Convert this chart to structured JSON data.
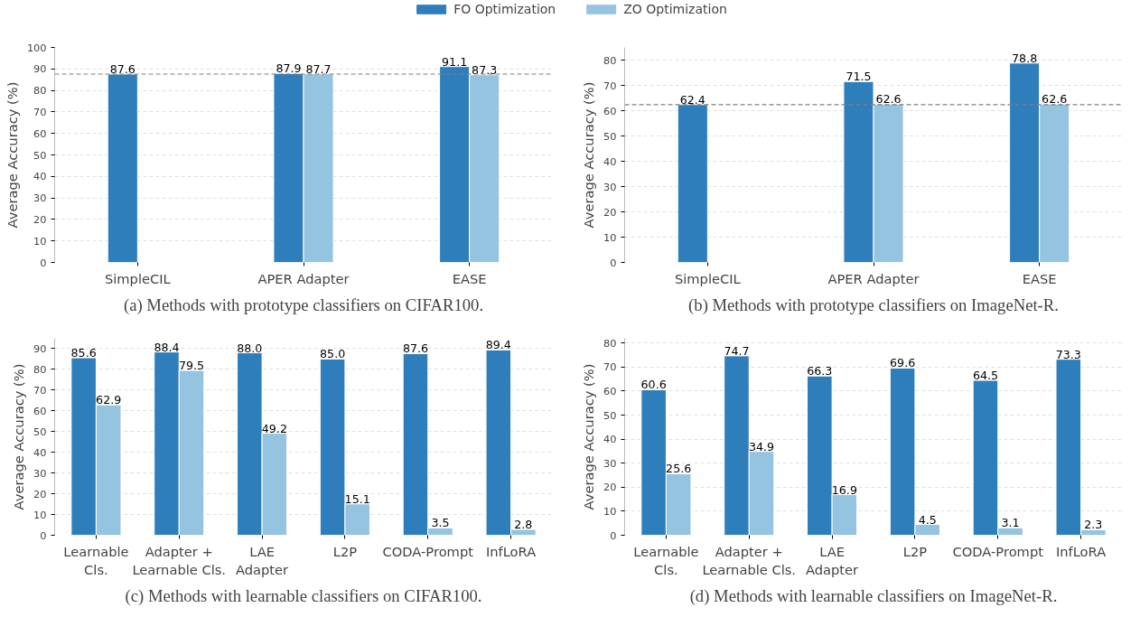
{
  "chart_data": [
    {
      "type": "bar",
      "title": "(a) Methods with prototype classifiers on CIFAR100.",
      "ylabel": "Average Accuracy (%)",
      "categories": [
        "SimpleCIL",
        "APER Adapter",
        "EASE"
      ],
      "series": [
        {
          "name": "FO Optimization",
          "color": "#2e7ebc",
          "values": [
            87.6,
            87.9,
            91.1
          ]
        },
        {
          "name": "ZO Optimization",
          "color": "#95c4e0",
          "values": [
            null,
            87.7,
            87.3
          ]
        }
      ],
      "ylim": [
        0,
        100
      ],
      "yticks": [
        0,
        10,
        20,
        30,
        40,
        50,
        60,
        70,
        80,
        90,
        100
      ],
      "grid": "y",
      "legend": "top",
      "data_labels": true,
      "ref_lines": [
        {
          "axis": "y",
          "value": 87.6,
          "color": "#808080",
          "line_style": "dashed"
        }
      ]
    },
    {
      "type": "bar",
      "title": "(b) Methods with prototype classifiers on ImageNet-R.",
      "ylabel": "Average Accuracy (%)",
      "categories": [
        "SimpleCIL",
        "APER Adapter",
        "EASE"
      ],
      "series": [
        {
          "color": "#2e7ebc",
          "values": [
            62.4,
            71.5,
            78.8
          ]
        },
        {
          "color": "#95c4e0",
          "values": [
            null,
            62.6,
            62.6
          ]
        }
      ],
      "ylim": [
        0,
        85
      ],
      "yticks": [
        0,
        10,
        20,
        30,
        40,
        50,
        60,
        70,
        80
      ],
      "grid": "y",
      "data_labels": true,
      "ref_lines": [
        {
          "axis": "y",
          "value": 62.4,
          "color": "#808080",
          "line_style": "dashed"
        }
      ]
    },
    {
      "type": "bar",
      "title": "(c) Methods with learnable classifiers on CIFAR100.",
      "ylabel": "Average Accuracy (%)",
      "categories": [
        "Learnable\nCls.",
        "Adapter +\nLearnable Cls.",
        "LAE\nAdapter",
        "L2P",
        "CODA-Prompt",
        "InfLoRA"
      ],
      "series": [
        {
          "color": "#2e7ebc",
          "values": [
            85.6,
            88.4,
            88.0,
            85.0,
            87.6,
            89.4
          ],
          "value_labels": [
            "85.6",
            "88.4",
            "88.0",
            "85.0",
            "87.6",
            "89.4"
          ]
        },
        {
          "color": "#95c4e0",
          "values": [
            62.9,
            79.5,
            49.2,
            15.1,
            3.5,
            2.8
          ]
        }
      ],
      "ylim": [
        0,
        95
      ],
      "yticks": [
        0,
        10,
        20,
        30,
        40,
        50,
        60,
        70,
        80,
        90
      ],
      "grid": "y",
      "data_labels": true
    },
    {
      "type": "bar",
      "title": "(d) Methods with learnable classifiers on ImageNet-R.",
      "ylabel": "Average Accuracy (%)",
      "categories": [
        "Learnable\nCls.",
        "Adapter +\nLearnable Cls.",
        "LAE\nAdapter",
        "L2P",
        "CODA-Prompt",
        "InfLoRA"
      ],
      "series": [
        {
          "color": "#2e7ebc",
          "values": [
            60.6,
            74.7,
            66.3,
            69.6,
            64.5,
            73.3
          ]
        },
        {
          "color": "#95c4e0",
          "values": [
            25.6,
            34.9,
            16.9,
            4.5,
            3.1,
            2.3
          ]
        }
      ],
      "ylim": [
        0,
        82
      ],
      "yticks": [
        0,
        10,
        20,
        30,
        40,
        50,
        60,
        70,
        80
      ],
      "grid": "y",
      "data_labels": true
    }
  ]
}
